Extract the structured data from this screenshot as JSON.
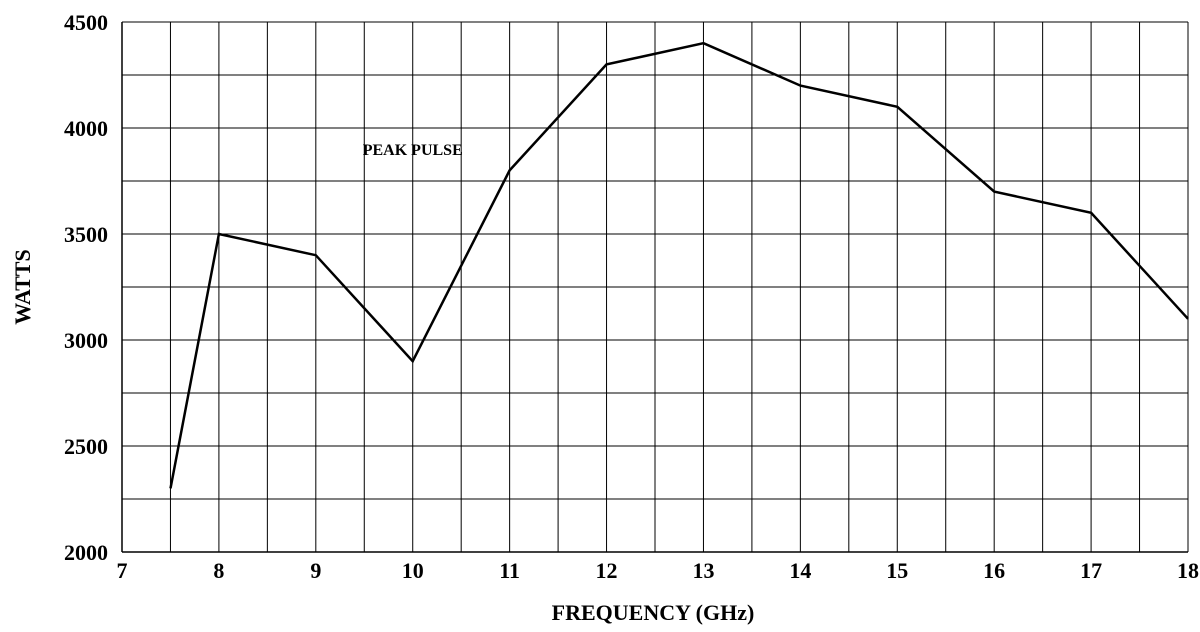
{
  "chart_data": {
    "type": "line",
    "title": "",
    "xlabel": "FREQUENCY (GHz)",
    "ylabel": "WATTS",
    "xlim": [
      7,
      18
    ],
    "ylim": [
      2000,
      4500
    ],
    "x_ticks": [
      7,
      8,
      9,
      10,
      11,
      12,
      13,
      14,
      15,
      16,
      17,
      18
    ],
    "x_tick_labels": [
      "7",
      "8",
      "9",
      "10",
      "11",
      "12",
      "13",
      "14",
      "15",
      "16",
      "17",
      "18"
    ],
    "y_ticks": [
      2000,
      2500,
      3000,
      3500,
      4000,
      4500
    ],
    "y_tick_labels": [
      "2000",
      "2500",
      "3000",
      "3500",
      "4000",
      "4500"
    ],
    "grid": true,
    "x_grid_step": 0.5,
    "y_grid_step": 250,
    "annotations": [
      {
        "text": "PEAK PULSE",
        "x": 10.0,
        "y": 3900
      }
    ],
    "series": [
      {
        "color": "#000000",
        "x": [
          7.5,
          8,
          9,
          10,
          11,
          12,
          13,
          14,
          15,
          16,
          17,
          18
        ],
        "y": [
          2300,
          3500,
          3400,
          2900,
          3800,
          4300,
          4400,
          4200,
          4100,
          3700,
          3600,
          3100
        ]
      }
    ]
  }
}
